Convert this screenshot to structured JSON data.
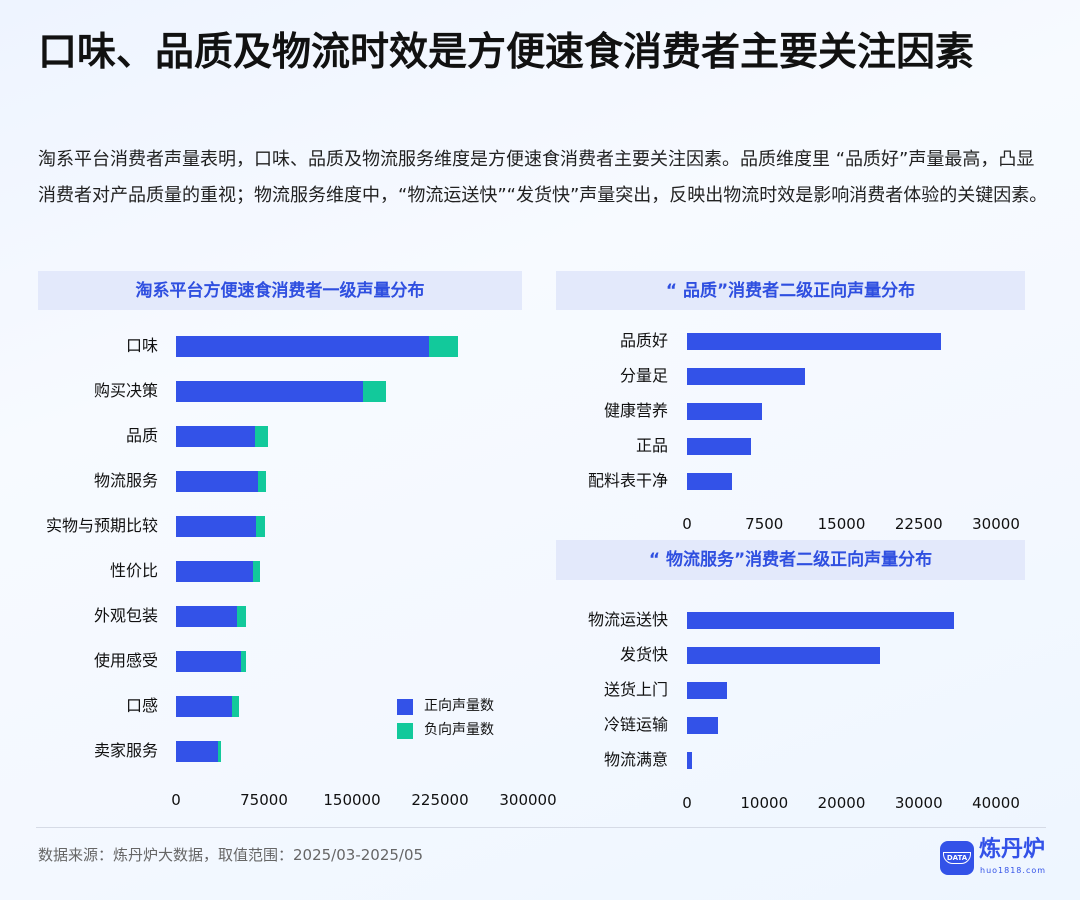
{
  "title": "口味、品质及物流时效是方便速食消费者主要关注因素",
  "description": "淘系平台消费者声量表明，口味、品质及物流服务维度是方便速食消费者主要关注因素。品质维度里 “品质好”声量最高，凸显消费者对产品质量的重视；物流服务维度中，“物流运送快”“发货快”声量突出，反映出物流时效是影响消费者体验的关键因素。",
  "colors": {
    "positive": "#3352e8",
    "negative": "#12c99b",
    "panel_header": "#e3e9fb",
    "header_text": "#2f4fe0"
  },
  "chart_data": [
    {
      "type": "bar",
      "orientation": "horizontal",
      "stacked": true,
      "title": "淘系平台方便速食消费者一级声量分布",
      "categories": [
        "口味",
        "购买决策",
        "品质",
        "物流服务",
        "实物与预期比较",
        "性价比",
        "外观包装",
        "使用感受",
        "口感",
        "卖家服务"
      ],
      "series": [
        {
          "name": "正向声量数",
          "values": [
            216000,
            159000,
            67000,
            70000,
            68000,
            66000,
            52000,
            55000,
            48000,
            36000
          ]
        },
        {
          "name": "负向声量数",
          "values": [
            24000,
            20000,
            11000,
            7000,
            8000,
            6000,
            8000,
            5000,
            6000,
            2000
          ]
        }
      ],
      "xlim": [
        0,
        300000
      ],
      "xticks": [
        "0",
        "75000",
        "150000",
        "225000",
        "300000"
      ],
      "legend": "bottom-right",
      "grid": false
    },
    {
      "type": "bar",
      "orientation": "horizontal",
      "title": "“ 品质”消费者二级正向声量分布",
      "categories": [
        "品质好",
        "分量足",
        "健康营养",
        "正品",
        "配料表干净"
      ],
      "values": [
        24700,
        11500,
        7300,
        6200,
        4400
      ],
      "xlim": [
        0,
        30000
      ],
      "xticks": [
        "0",
        "7500",
        "15000",
        "22500",
        "30000"
      ],
      "grid": false
    },
    {
      "type": "bar",
      "orientation": "horizontal",
      "title": "“ 物流服务”消费者二级正向声量分布",
      "categories": [
        "物流运送快",
        "发货快",
        "送货上门",
        "冷链运输",
        "物流满意"
      ],
      "values": [
        34500,
        25000,
        5200,
        4000,
        600
      ],
      "xlim": [
        0,
        40000
      ],
      "xticks": [
        "0",
        "10000",
        "20000",
        "30000",
        "40000"
      ],
      "grid": false
    }
  ],
  "footer": {
    "source": "数据来源：炼丹炉大数据，取值范围：2025/03-2025/05",
    "logo_text": "炼丹炉",
    "logo_url_text": "huo1818.com",
    "logo_badge": "DATA"
  }
}
